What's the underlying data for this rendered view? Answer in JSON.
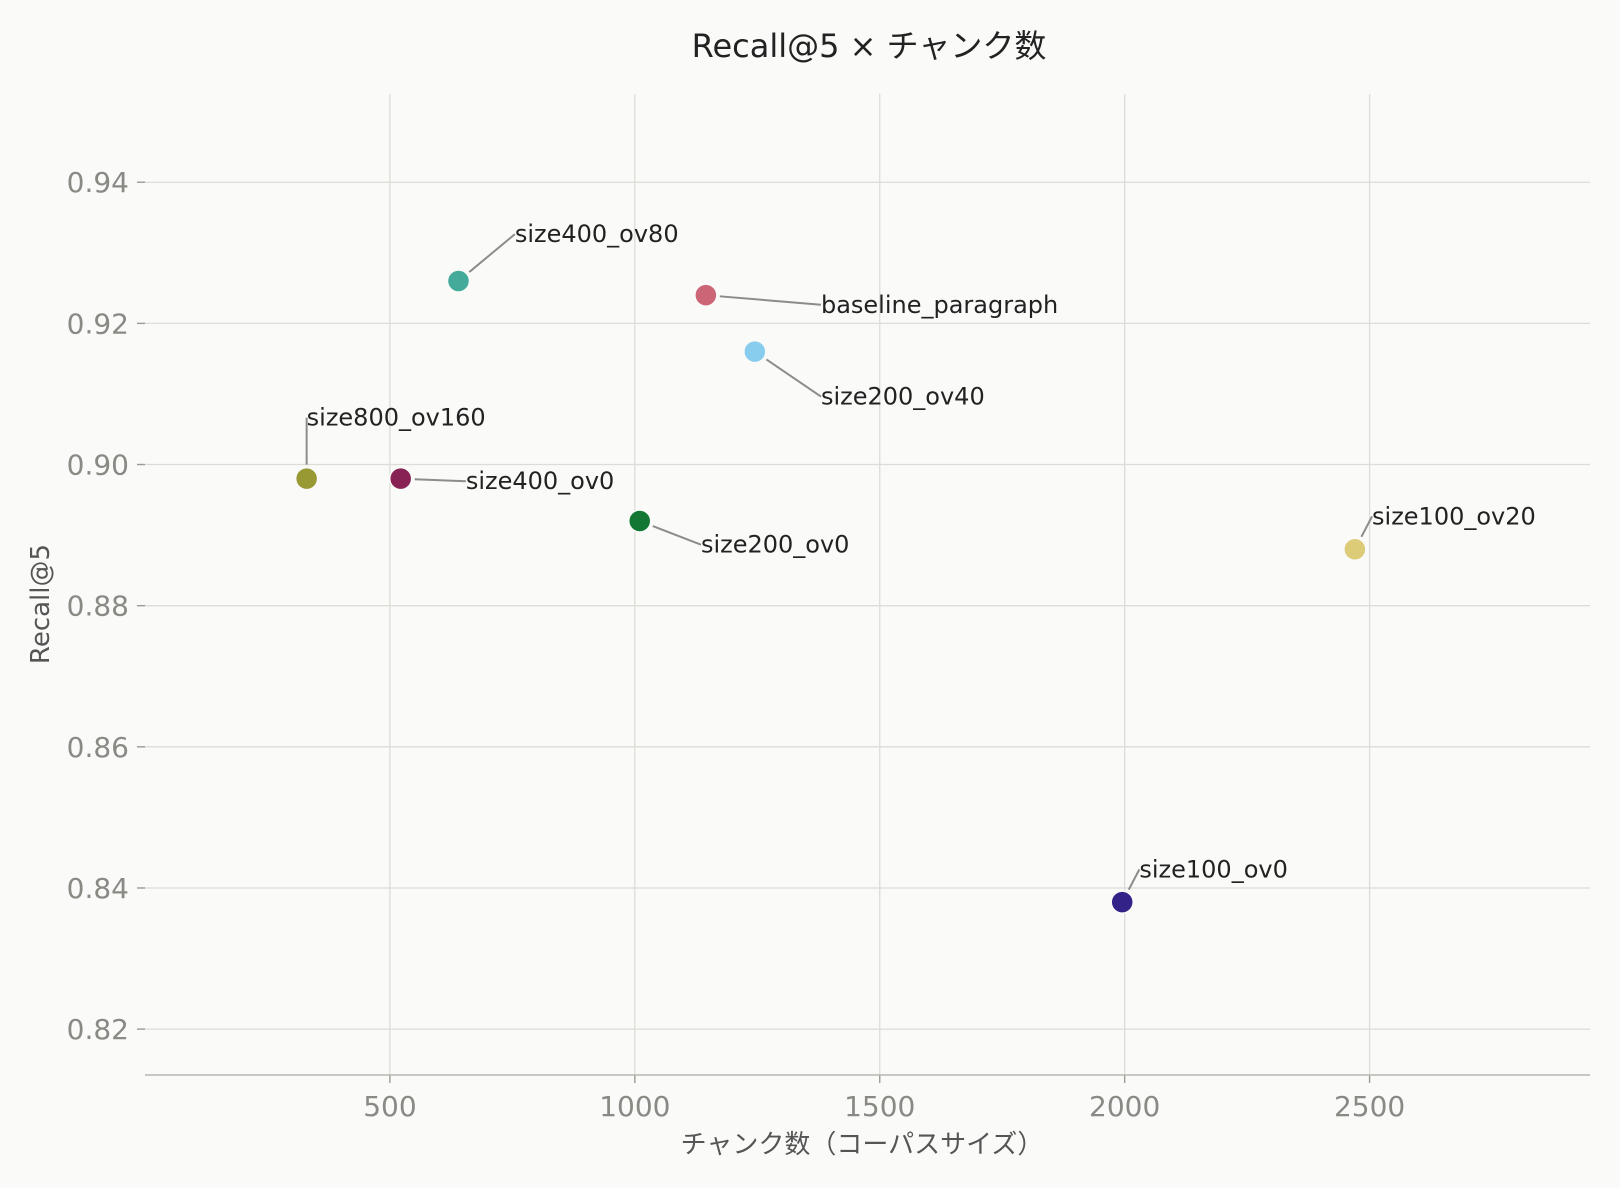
{
  "chart_data": {
    "type": "scatter",
    "title": "Recall@5 × チャンク数",
    "xlabel": "チャンク数（コーパスサイズ）",
    "ylabel": "Recall@5",
    "xlim": [
      0,
      2950
    ],
    "ylim": [
      0.8135,
      0.9525
    ],
    "xticks": [
      500,
      1000,
      1500,
      2000,
      2500
    ],
    "yticks": [
      0.82,
      0.84,
      0.86,
      0.88,
      0.9,
      0.92,
      0.94
    ],
    "grid": true,
    "legend": "none",
    "points": [
      {
        "label": "size400_ov80",
        "x": 640,
        "y": 0.926,
        "color": "#44aa99",
        "label_x": 755,
        "label_y": 0.9315
      },
      {
        "label": "baseline_paragraph",
        "x": 1145,
        "y": 0.924,
        "color": "#cc6677",
        "label_x": 1380,
        "label_y": 0.9215
      },
      {
        "label": "size200_ov40",
        "x": 1245,
        "y": 0.916,
        "color": "#88ccee",
        "label_x": 1380,
        "label_y": 0.9085
      },
      {
        "label": "size800_ov160",
        "x": 330,
        "y": 0.898,
        "color": "#999933",
        "label_x": 330,
        "label_y": 0.9055
      },
      {
        "label": "size400_ov0",
        "x": 522,
        "y": 0.898,
        "color": "#882255",
        "label_x": 655,
        "label_y": 0.8965
      },
      {
        "label": "size200_ov0",
        "x": 1010,
        "y": 0.892,
        "color": "#117733",
        "label_x": 1135,
        "label_y": 0.8875
      },
      {
        "label": "size100_ov20",
        "x": 2470,
        "y": 0.888,
        "color": "#ddcc77",
        "label_x": 2505,
        "label_y": 0.8915
      },
      {
        "label": "size100_ov0",
        "x": 1995,
        "y": 0.838,
        "color": "#332288",
        "label_x": 2030,
        "label_y": 0.8415
      }
    ]
  }
}
